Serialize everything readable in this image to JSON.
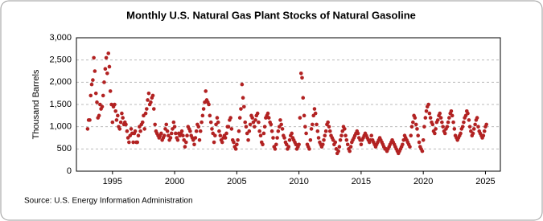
{
  "chart_data": {
    "type": "scatter",
    "title": "Monthly U.S. Natural Gas Plant Stocks of Natural Gasoline",
    "y_label": "Thousand Barrels",
    "source": "Source: U.S. Energy Information Administration",
    "color": "#b22222",
    "grid": true,
    "xlim": [
      1992.1,
      2026.2
    ],
    "xticks": [
      1995,
      2000,
      2005,
      2010,
      2015,
      2020,
      2025
    ],
    "ylim": [
      0,
      3000
    ],
    "yticks": [
      0,
      {
        "value": 500,
        "label": "500"
      },
      {
        "value": 1000,
        "label": "1,000"
      },
      {
        "value": 1500,
        "label": "1,500"
      },
      {
        "value": 2000,
        "label": "2,000"
      },
      {
        "value": 2500,
        "label": "2,500"
      },
      {
        "value": 3000,
        "label": "3,000"
      }
    ],
    "x": [
      1993,
      1993.08,
      1993.17,
      1993.25,
      1993.33,
      1993.42,
      1993.5,
      1993.58,
      1993.67,
      1993.75,
      1993.83,
      1993.92,
      1994,
      1994.08,
      1994.17,
      1994.25,
      1994.33,
      1994.42,
      1994.5,
      1994.58,
      1994.67,
      1994.75,
      1994.83,
      1994.92,
      1995,
      1995.08,
      1995.17,
      1995.25,
      1995.33,
      1995.42,
      1995.5,
      1995.58,
      1995.67,
      1995.75,
      1995.83,
      1995.92,
      1996,
      1996.08,
      1996.17,
      1996.25,
      1996.33,
      1996.42,
      1996.5,
      1996.58,
      1996.67,
      1996.75,
      1996.83,
      1996.92,
      1997,
      1997.08,
      1997.17,
      1997.25,
      1997.33,
      1997.42,
      1997.5,
      1997.58,
      1997.67,
      1997.75,
      1997.83,
      1997.92,
      1998,
      1998.08,
      1998.17,
      1998.25,
      1998.33,
      1998.42,
      1998.5,
      1998.58,
      1998.67,
      1998.75,
      1998.83,
      1998.92,
      1999,
      1999.08,
      1999.17,
      1999.25,
      1999.33,
      1999.42,
      1999.5,
      1999.58,
      1999.67,
      1999.75,
      1999.83,
      1999.92,
      2000,
      2000.08,
      2000.17,
      2000.25,
      2000.33,
      2000.42,
      2000.5,
      2000.58,
      2000.67,
      2000.75,
      2000.83,
      2000.92,
      2001,
      2001.08,
      2001.17,
      2001.25,
      2001.33,
      2001.42,
      2001.5,
      2001.58,
      2001.67,
      2001.75,
      2001.83,
      2001.92,
      2002,
      2002.08,
      2002.17,
      2002.25,
      2002.33,
      2002.42,
      2002.5,
      2002.58,
      2002.67,
      2002.75,
      2002.83,
      2002.92,
      2003,
      2003.08,
      2003.17,
      2003.25,
      2003.33,
      2003.42,
      2003.5,
      2003.58,
      2003.67,
      2003.75,
      2003.83,
      2003.92,
      2004,
      2004.08,
      2004.17,
      2004.25,
      2004.33,
      2004.42,
      2004.5,
      2004.58,
      2004.67,
      2004.75,
      2004.83,
      2004.92,
      2005,
      2005.08,
      2005.17,
      2005.25,
      2005.33,
      2005.42,
      2005.5,
      2005.58,
      2005.67,
      2005.75,
      2005.83,
      2005.92,
      2006,
      2006.08,
      2006.17,
      2006.25,
      2006.33,
      2006.42,
      2006.5,
      2006.58,
      2006.67,
      2006.75,
      2006.83,
      2006.92,
      2007,
      2007.08,
      2007.17,
      2007.25,
      2007.33,
      2007.42,
      2007.5,
      2007.58,
      2007.67,
      2007.75,
      2007.83,
      2007.92,
      2008,
      2008.08,
      2008.17,
      2008.25,
      2008.33,
      2008.42,
      2008.5,
      2008.58,
      2008.67,
      2008.75,
      2008.83,
      2008.92,
      2009,
      2009.08,
      2009.17,
      2009.25,
      2009.33,
      2009.42,
      2009.5,
      2009.58,
      2009.67,
      2009.75,
      2009.83,
      2009.92,
      2010,
      2010.08,
      2010.17,
      2010.25,
      2010.33,
      2010.42,
      2010.5,
      2010.58,
      2010.67,
      2010.75,
      2010.83,
      2010.92,
      2011,
      2011.08,
      2011.17,
      2011.25,
      2011.33,
      2011.42,
      2011.5,
      2011.58,
      2011.67,
      2011.75,
      2011.83,
      2011.92,
      2012,
      2012.08,
      2012.17,
      2012.25,
      2012.33,
      2012.42,
      2012.5,
      2012.58,
      2012.67,
      2012.75,
      2012.83,
      2012.92,
      2013,
      2013.08,
      2013.17,
      2013.25,
      2013.33,
      2013.42,
      2013.5,
      2013.58,
      2013.67,
      2013.75,
      2013.83,
      2013.92,
      2014,
      2014.08,
      2014.17,
      2014.25,
      2014.33,
      2014.42,
      2014.5,
      2014.58,
      2014.67,
      2014.75,
      2014.83,
      2014.92,
      2015,
      2015.08,
      2015.17,
      2015.25,
      2015.33,
      2015.42,
      2015.5,
      2015.58,
      2015.67,
      2015.75,
      2015.83,
      2015.92,
      2016,
      2016.08,
      2016.17,
      2016.25,
      2016.33,
      2016.42,
      2016.5,
      2016.58,
      2016.67,
      2016.75,
      2016.83,
      2016.92,
      2017,
      2017.08,
      2017.17,
      2017.25,
      2017.33,
      2017.42,
      2017.5,
      2017.58,
      2017.67,
      2017.75,
      2017.83,
      2017.92,
      2018,
      2018.08,
      2018.17,
      2018.25,
      2018.33,
      2018.42,
      2018.5,
      2018.58,
      2018.67,
      2018.75,
      2018.83,
      2018.92,
      2019,
      2019.08,
      2019.17,
      2019.25,
      2019.33,
      2019.42,
      2019.5,
      2019.58,
      2019.67,
      2019.75,
      2019.83,
      2019.92,
      2020,
      2020.08,
      2020.17,
      2020.25,
      2020.33,
      2020.42,
      2020.5,
      2020.58,
      2020.67,
      2020.75,
      2020.83,
      2020.92,
      2021,
      2021.08,
      2021.17,
      2021.25,
      2021.33,
      2021.42,
      2021.5,
      2021.58,
      2021.67,
      2021.75,
      2021.83,
      2021.92,
      2022,
      2022.08,
      2022.17,
      2022.25,
      2022.33,
      2022.42,
      2022.5,
      2022.58,
      2022.67,
      2022.75,
      2022.83,
      2022.92,
      2023,
      2023.08,
      2023.17,
      2023.25,
      2023.33,
      2023.42,
      2023.5,
      2023.58,
      2023.67,
      2023.75,
      2023.83,
      2023.92,
      2024,
      2024.08,
      2024.17,
      2024.25,
      2024.33,
      2024.42,
      2024.5,
      2024.58,
      2024.67,
      2024.75,
      2024.83,
      2024.92,
      2025,
      2025.08
    ],
    "values": [
      950,
      1150,
      1150,
      1700,
      1950,
      2050,
      2550,
      2250,
      1750,
      1550,
      1200,
      1250,
      1500,
      1400,
      1450,
      1700,
      2000,
      2300,
      2550,
      2200,
      2650,
      2350,
      1800,
      1500,
      1100,
      1450,
      1500,
      1350,
      1150,
      1250,
      1000,
      950,
      1100,
      1300,
      1200,
      1050,
      1100,
      1050,
      900,
      750,
      650,
      800,
      950,
      850,
      650,
      850,
      900,
      650,
      650,
      800,
      1000,
      900,
      1050,
      1100,
      1250,
      950,
      1300,
      1400,
      1600,
      1750,
      1500,
      1550,
      1650,
      1700,
      1400,
      1050,
      900,
      850,
      800,
      750,
      800,
      850,
      700,
      750,
      800,
      950,
      1050,
      900,
      800,
      700,
      750,
      850,
      950,
      1100,
      1000,
      850,
      750,
      700,
      850,
      800,
      850,
      900,
      800,
      700,
      550,
      650,
      800,
      1000,
      950,
      900,
      800,
      750,
      700,
      600,
      750,
      900,
      1050,
      1000,
      700,
      900,
      1100,
      1250,
      1400,
      1550,
      1800,
      1600,
      1550,
      1500,
      1250,
      1100,
      950,
      850,
      650,
      800,
      1050,
      1200,
      1100,
      900,
      800,
      700,
      650,
      750,
      800,
      750,
      850,
      1000,
      1000,
      1150,
      1200,
      950,
      700,
      650,
      550,
      500,
      600,
      700,
      900,
      1200,
      1400,
      1950,
      1650,
      1450,
      1100,
      1000,
      850,
      700,
      900,
      1050,
      1250,
      1200,
      1100,
      1000,
      1150,
      1250,
      1300,
      1100,
      900,
      800,
      650,
      600,
      850,
      1000,
      1200,
      1250,
      1300,
      1200,
      1100,
      1050,
      900,
      750,
      550,
      500,
      600,
      750,
      900,
      1000,
      1150,
      1050,
      950,
      800,
      750,
      650,
      600,
      500,
      550,
      700,
      800,
      850,
      750,
      700,
      650,
      600,
      500,
      550,
      600,
      1200,
      2200,
      2100,
      1650,
      1250,
      1000,
      850,
      600,
      550,
      500,
      700,
      950,
      1050,
      1250,
      1400,
      1300,
      1050,
      900,
      750,
      650,
      600,
      550,
      600,
      700,
      800,
      900,
      1050,
      1100,
      1000,
      900,
      800,
      750,
      700,
      600,
      650,
      500,
      400,
      450,
      550,
      700,
      800,
      900,
      1000,
      950,
      800,
      700,
      600,
      500,
      450,
      550,
      650,
      700,
      750,
      800,
      850,
      900,
      850,
      750,
      700,
      600,
      700,
      750,
      800,
      850,
      800,
      750,
      700,
      650,
      700,
      800,
      700,
      650,
      600,
      550,
      600,
      650,
      700,
      750,
      700,
      650,
      600,
      550,
      500,
      500,
      450,
      500,
      550,
      600,
      650,
      700,
      650,
      600,
      550,
      500,
      450,
      400,
      450,
      500,
      550,
      600,
      700,
      800,
      750,
      700,
      650,
      600,
      550,
      800,
      1000,
      1100,
      1250,
      1200,
      1050,
      950,
      800,
      650,
      550,
      500,
      450,
      700,
      1000,
      1200,
      1350,
      1450,
      1500,
      1300,
      1200,
      1100,
      1050,
      900,
      850,
      950,
      1100,
      1150,
      1250,
      1300,
      1200,
      1100,
      1000,
      900,
      850,
      950,
      1000,
      1100,
      1200,
      1300,
      1350,
      1250,
      1100,
      950,
      800,
      750,
      700,
      750,
      800,
      850,
      950,
      1000,
      1100,
      1200,
      1250,
      1350,
      1300,
      1150,
      1000,
      900,
      800,
      850,
      950,
      1050,
      1150,
      1200,
      1000,
      900,
      850,
      800,
      750,
      800,
      900,
      1000,
      1050
    ]
  }
}
